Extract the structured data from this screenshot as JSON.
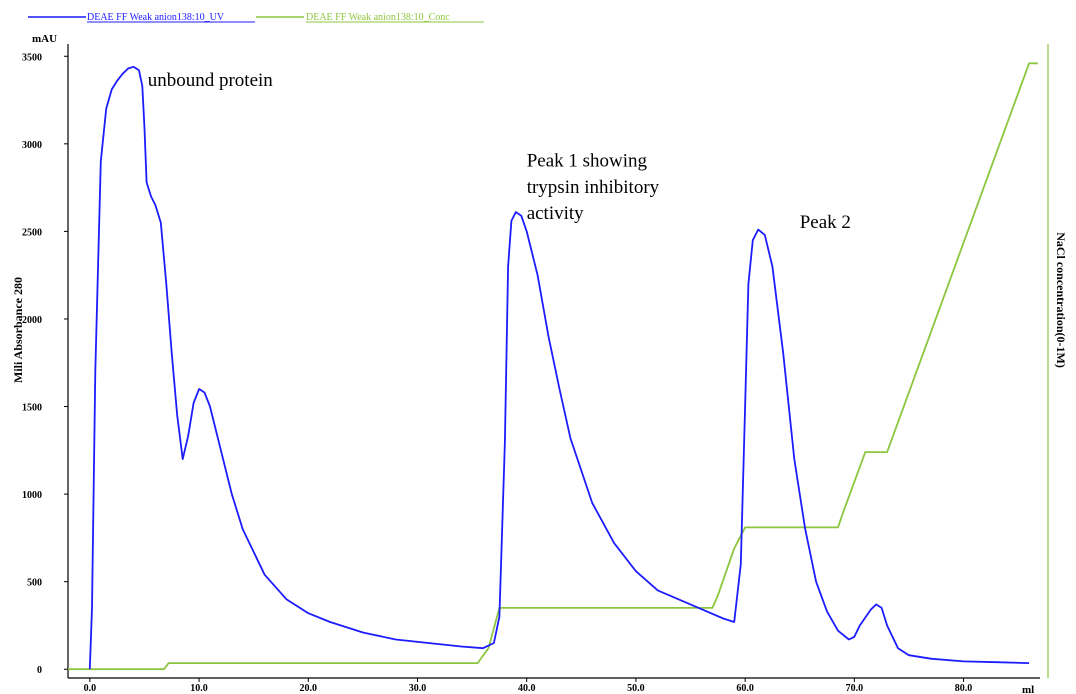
{
  "chart_data": {
    "type": "line",
    "legend": [
      {
        "name": "DEAE FF Weak anion138:10_UV",
        "color": "#1c1cff"
      },
      {
        "name": "DEAE FF Weak anion138:10_Conc",
        "color": "#8cc63f"
      }
    ],
    "y_unit": "mAU",
    "x_unit": "ml",
    "ylabel": "Mili Absorbance 280",
    "y2label": "NaCl concentration(0-1M)",
    "xlim": [
      -2,
      87
    ],
    "ylim": [
      -50,
      3570
    ],
    "x_ticks": [
      "0.0",
      "10.0",
      "20.0",
      "30.0",
      "40.0",
      "50.0",
      "60.0",
      "70.0",
      "80.0"
    ],
    "y_ticks": [
      "0",
      "500",
      "1000",
      "1500",
      "2000",
      "2500",
      "3000",
      "3500"
    ],
    "annotations": [
      {
        "text": "unbound protein",
        "x": 5.3,
        "y": 3330
      },
      {
        "text": "Peak 1 showing",
        "x": 40.0,
        "y": 2870
      },
      {
        "text": "trypsin inhibitory",
        "x": 40.0,
        "y": 2720
      },
      {
        "text": "activity",
        "x": 40.0,
        "y": 2570
      },
      {
        "text": "Peak 2",
        "x": 65.0,
        "y": 2520
      }
    ],
    "series": [
      {
        "name": "DEAE FF Weak anion138:10_UV",
        "color": "#1c1cff",
        "points": [
          [
            0.0,
            0
          ],
          [
            0.2,
            350
          ],
          [
            0.5,
            1700
          ],
          [
            1.0,
            2900
          ],
          [
            1.5,
            3200
          ],
          [
            2.0,
            3310
          ],
          [
            2.5,
            3360
          ],
          [
            3.0,
            3400
          ],
          [
            3.5,
            3430
          ],
          [
            4.0,
            3440
          ],
          [
            4.5,
            3420
          ],
          [
            4.8,
            3330
          ],
          [
            5.0,
            3100
          ],
          [
            5.2,
            2780
          ],
          [
            5.6,
            2700
          ],
          [
            6.0,
            2650
          ],
          [
            6.5,
            2550
          ],
          [
            7.0,
            2200
          ],
          [
            7.5,
            1800
          ],
          [
            8.0,
            1450
          ],
          [
            8.5,
            1200
          ],
          [
            9.0,
            1330
          ],
          [
            9.5,
            1520
          ],
          [
            10.0,
            1600
          ],
          [
            10.5,
            1580
          ],
          [
            11.0,
            1500
          ],
          [
            12.0,
            1250
          ],
          [
            13.0,
            1000
          ],
          [
            14.0,
            800
          ],
          [
            16.0,
            540
          ],
          [
            18.0,
            400
          ],
          [
            20.0,
            320
          ],
          [
            22.0,
            270
          ],
          [
            25.0,
            210
          ],
          [
            28.0,
            170
          ],
          [
            31.0,
            150
          ],
          [
            34.0,
            130
          ],
          [
            36.0,
            120
          ],
          [
            37.0,
            150
          ],
          [
            37.5,
            300
          ],
          [
            38.0,
            1300
          ],
          [
            38.3,
            2300
          ],
          [
            38.6,
            2560
          ],
          [
            39.0,
            2610
          ],
          [
            39.5,
            2590
          ],
          [
            40.0,
            2500
          ],
          [
            41.0,
            2250
          ],
          [
            42.0,
            1900
          ],
          [
            43.0,
            1600
          ],
          [
            44.0,
            1320
          ],
          [
            46.0,
            950
          ],
          [
            48.0,
            720
          ],
          [
            50.0,
            560
          ],
          [
            52.0,
            450
          ],
          [
            55.0,
            370
          ],
          [
            58.0,
            290
          ],
          [
            59.0,
            270
          ],
          [
            59.6,
            600
          ],
          [
            60.0,
            1500
          ],
          [
            60.3,
            2200
          ],
          [
            60.7,
            2450
          ],
          [
            61.2,
            2510
          ],
          [
            61.8,
            2480
          ],
          [
            62.5,
            2300
          ],
          [
            63.5,
            1800
          ],
          [
            64.5,
            1200
          ],
          [
            65.5,
            800
          ],
          [
            66.5,
            500
          ],
          [
            67.5,
            330
          ],
          [
            68.5,
            220
          ],
          [
            69.5,
            170
          ],
          [
            70.0,
            185
          ],
          [
            70.5,
            250
          ],
          [
            71.5,
            340
          ],
          [
            72.0,
            370
          ],
          [
            72.5,
            350
          ],
          [
            73.0,
            250
          ],
          [
            74.0,
            120
          ],
          [
            75.0,
            80
          ],
          [
            77.0,
            60
          ],
          [
            80.0,
            45
          ],
          [
            83.0,
            40
          ],
          [
            86.0,
            35
          ]
        ]
      },
      {
        "name": "DEAE FF Weak anion138:10_Conc",
        "color": "#8cc63f",
        "points": [
          [
            -2.0,
            0
          ],
          [
            6.8,
            0
          ],
          [
            7.2,
            35
          ],
          [
            35.5,
            35
          ],
          [
            36.5,
            120
          ],
          [
            37.5,
            350
          ],
          [
            57.0,
            350
          ],
          [
            57.5,
            420
          ],
          [
            59.0,
            690
          ],
          [
            60.0,
            810
          ],
          [
            68.5,
            810
          ],
          [
            69.0,
            900
          ],
          [
            71.0,
            1240
          ],
          [
            73.0,
            1240
          ],
          [
            86.0,
            3460
          ],
          [
            86.8,
            3460
          ]
        ]
      }
    ]
  }
}
